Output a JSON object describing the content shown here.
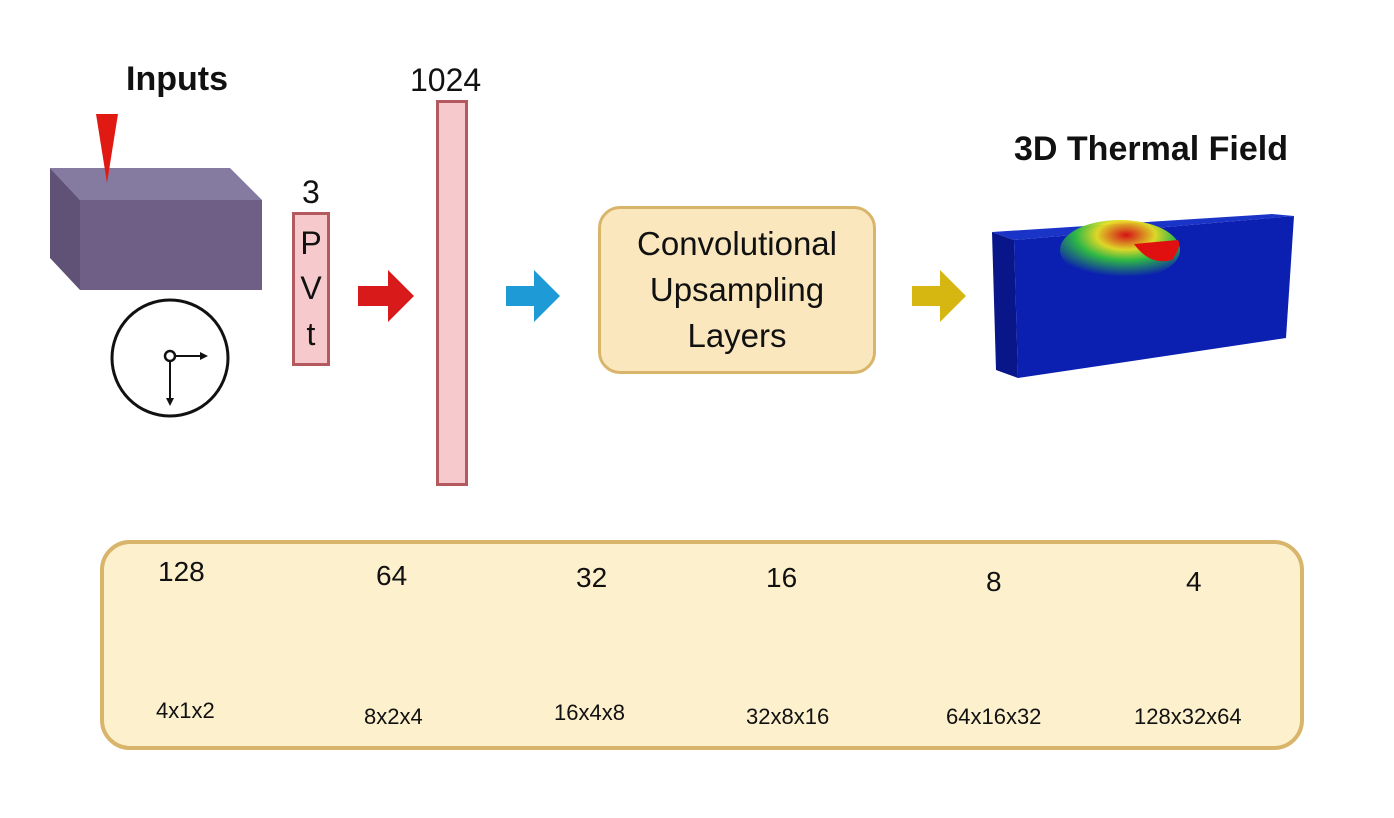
{
  "inputs_title": "Inputs",
  "input_count": "3",
  "input_labels": [
    "P",
    "V",
    "t"
  ],
  "dense_size": "1024",
  "conv_block": [
    "Convolutional",
    "Upsampling",
    "Layers"
  ],
  "output_title": "3D Thermal Field",
  "stages": [
    {
      "channels": "128",
      "dims": "4x1x2"
    },
    {
      "channels": "64",
      "dims": "8x2x4"
    },
    {
      "channels": "32",
      "dims": "16x4x8"
    },
    {
      "channels": "16",
      "dims": "32x8x16"
    },
    {
      "channels": "8",
      "dims": "64x16x32"
    },
    {
      "channels": "4",
      "dims": "128x32x64"
    }
  ],
  "colors": {
    "block": "#6f5f86",
    "laser": "#e01a12",
    "input_fill": "#f6c9cc",
    "arrow_red": "#d81a1a",
    "arrow_blue": "#1e9ad6",
    "arrow_yellow": "#d6b611",
    "arrow_green": "#4a9a1e",
    "field_blue": "#0b1fb0"
  }
}
